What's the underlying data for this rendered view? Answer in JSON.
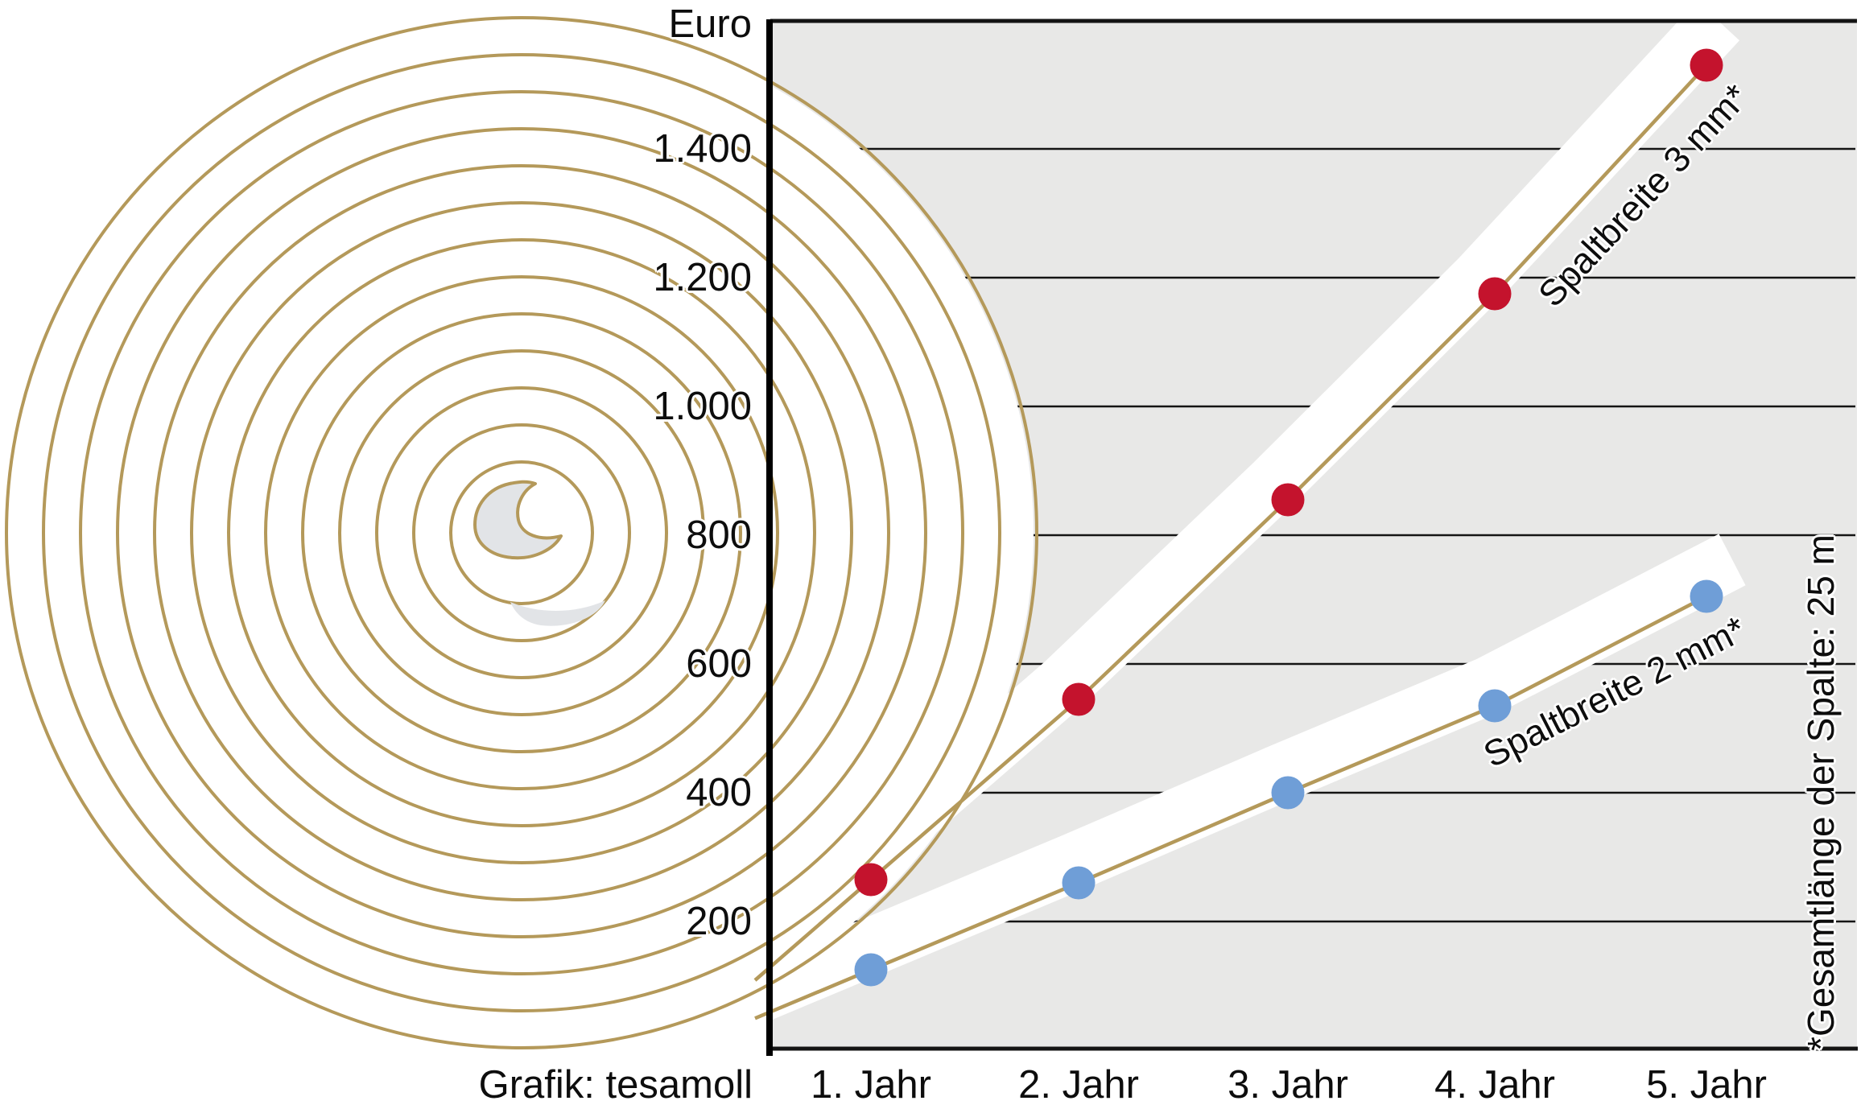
{
  "chart_data": {
    "type": "line",
    "categories": [
      "1. Jahr",
      "2. Jahr",
      "3. Jahr",
      "4. Jahr",
      "5. Jahr"
    ],
    "series": [
      {
        "name": "Spaltbreite 3 mm*",
        "color": "#c4132d",
        "values": [
          265,
          545,
          855,
          1175,
          1530
        ]
      },
      {
        "name": "Spaltbreite 2 mm*",
        "color": "#6f9ed7",
        "values": [
          125,
          260,
          400,
          535,
          705
        ]
      }
    ],
    "ylabel": "Euro",
    "yticks": [
      "200",
      "400",
      "600",
      "800",
      "1.000",
      "1.200",
      "1.400"
    ],
    "ytick_values": [
      200,
      400,
      600,
      800,
      1000,
      1200,
      1400
    ],
    "ylim": [
      0,
      1600
    ],
    "grid": true,
    "legend_position": "on-line-rotated",
    "footnote": "*Gesamtlänge der Spalte: 25 m",
    "credit": "Grafik: tesamoll",
    "colors": {
      "trend_line_gold": "#b4995a",
      "plot_background": "#e8e8e7",
      "grid_line": "#141414",
      "axis": "#000000",
      "band_white": "#ffffff",
      "spiral_gold": "#b4995a",
      "curl_gray": "#e2e4e7",
      "text": "#0d0d0d"
    }
  }
}
